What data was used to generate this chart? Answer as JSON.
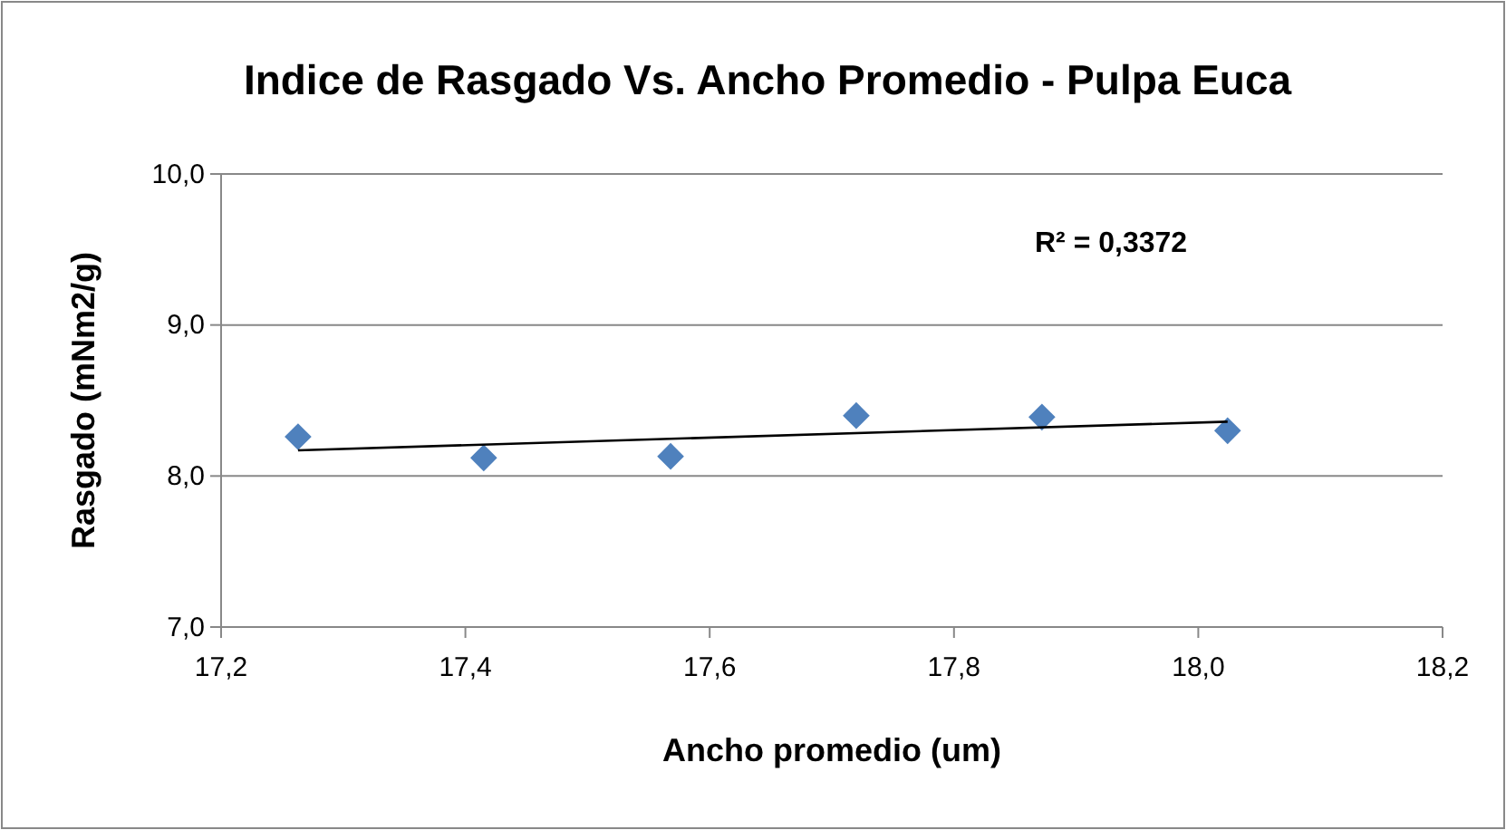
{
  "chart_data": {
    "type": "scatter",
    "title": "Indice de Rasgado Vs. Ancho Promedio - Pulpa Euca",
    "xlabel": "Ancho promedio (um)",
    "ylabel": "Rasgado (mNm2/g)",
    "x": [
      17.263,
      17.415,
      17.568,
      17.72,
      17.872,
      18.024
    ],
    "series": [
      {
        "color": "#4f81bd",
        "values": [
          8.26,
          8.12,
          8.13,
          8.4,
          8.39,
          8.3
        ],
        "marker": "diamond"
      },
      {
        "type": "line",
        "color": "#000000",
        "x": [
          17.263,
          18.024
        ],
        "values": [
          8.17,
          8.36
        ],
        "marker": "none"
      }
    ],
    "xlim": [
      17.2,
      18.2
    ],
    "xticks": [
      {
        "value": 17.2,
        "label": "17,2"
      },
      {
        "value": 17.4,
        "label": "17,4"
      },
      {
        "value": 17.6,
        "label": "17,6"
      },
      {
        "value": 17.8,
        "label": "17,8"
      },
      {
        "value": 18.0,
        "label": "18,0"
      },
      {
        "value": 18.2,
        "label": "18,2"
      }
    ],
    "ylim": [
      7,
      10
    ],
    "yticks": [
      {
        "value": 7,
        "label": "7,0"
      },
      {
        "value": 8,
        "label": "8,0"
      },
      {
        "value": 9,
        "label": "9,0"
      },
      {
        "value": 10,
        "label": "10,0"
      }
    ],
    "grid": "y",
    "annotations": [
      "R² = 0,3372"
    ]
  }
}
